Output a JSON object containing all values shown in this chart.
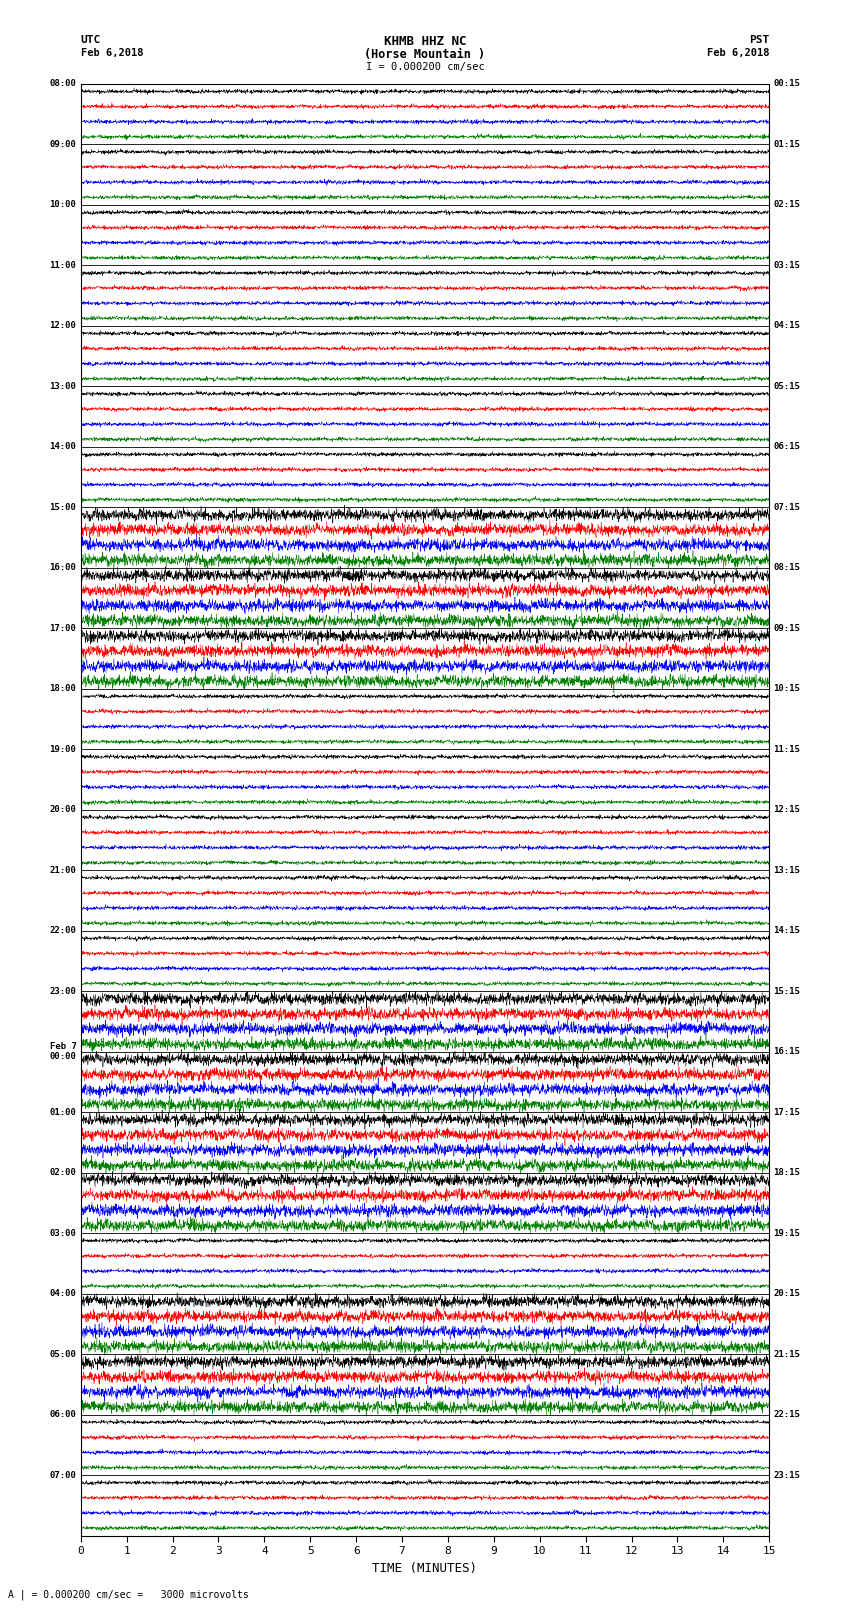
{
  "title_line1": "KHMB HHZ NC",
  "title_line2": "(Horse Mountain )",
  "scale_label": "I = 0.000200 cm/sec",
  "bottom_label": "A | = 0.000200 cm/sec =   3000 microvolts",
  "xlabel": "TIME (MINUTES)",
  "left_times": [
    "08:00",
    "09:00",
    "10:00",
    "11:00",
    "12:00",
    "13:00",
    "14:00",
    "15:00",
    "16:00",
    "17:00",
    "18:00",
    "19:00",
    "20:00",
    "21:00",
    "22:00",
    "23:00",
    "Feb 7\n00:00",
    "01:00",
    "02:00",
    "03:00",
    "04:00",
    "05:00",
    "06:00",
    "07:00"
  ],
  "right_times": [
    "00:15",
    "01:15",
    "02:15",
    "03:15",
    "04:15",
    "05:15",
    "06:15",
    "07:15",
    "08:15",
    "09:15",
    "10:15",
    "11:15",
    "12:15",
    "13:15",
    "14:15",
    "15:15",
    "16:15",
    "17:15",
    "18:15",
    "19:15",
    "20:15",
    "21:15",
    "22:15",
    "23:15"
  ],
  "n_rows": 24,
  "traces_per_row": 4,
  "colors": [
    "black",
    "red",
    "blue",
    "green"
  ],
  "bg_color": "white",
  "fig_width": 8.5,
  "fig_height": 16.13,
  "dpi": 100,
  "noise_seed": 42,
  "samples_per_row": 2700,
  "minutes": 15,
  "base_amplitude": 0.06,
  "high_amp_rows": [
    7,
    8,
    9,
    15,
    16,
    17,
    18,
    20,
    21
  ],
  "high_amp_scale": 3.0,
  "linewidth": 0.35
}
